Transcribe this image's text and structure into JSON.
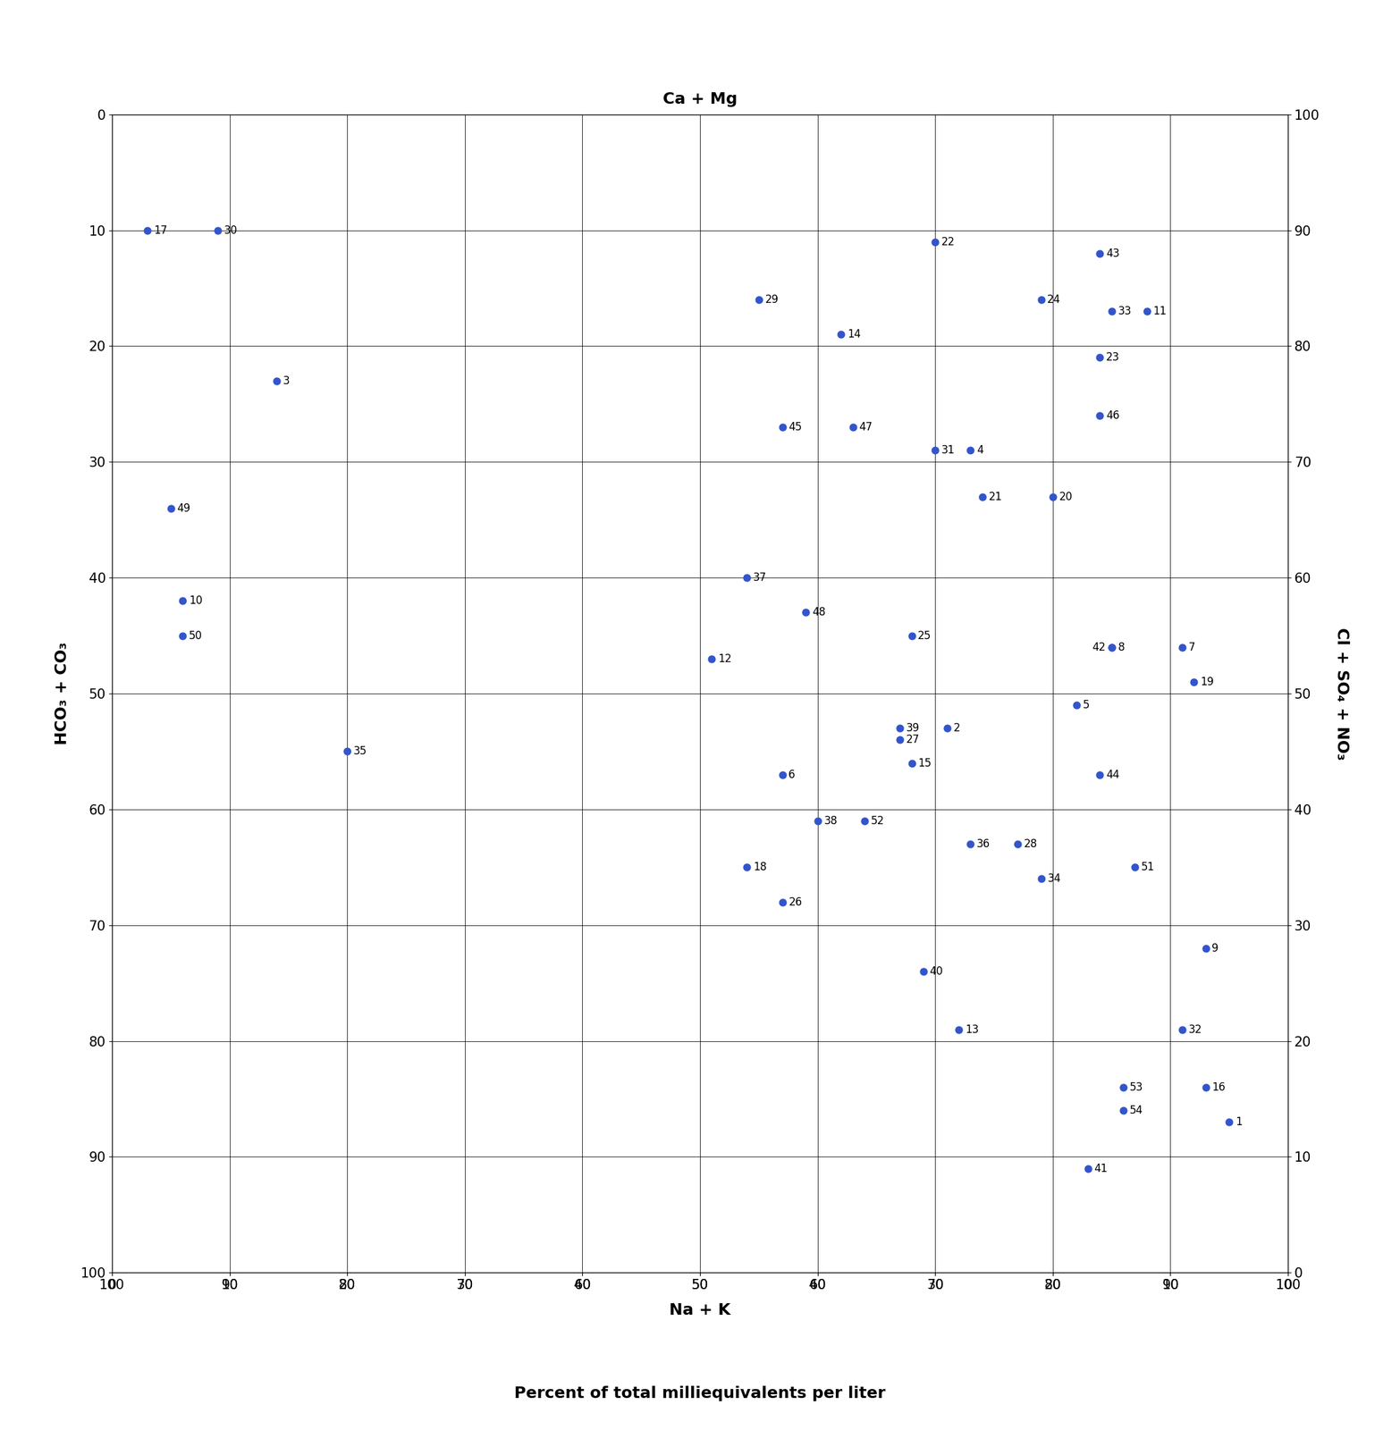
{
  "chart_data": {
    "type": "scatter",
    "x_label": "Ca + Mg",
    "x2_label": "Na + K",
    "y_label": "HCO₃ + CO₃",
    "y2_label": "Cl + SO₄ + NO₃",
    "subtitle": "Percent of total milliequivalents per liter",
    "color": "#3355cc",
    "grid": true,
    "xlim": [
      0,
      100
    ],
    "xticks": [
      0,
      10,
      20,
      30,
      40,
      50,
      60,
      70,
      80,
      90,
      100
    ],
    "x2lim": [
      100,
      0
    ],
    "x2ticks": [
      0,
      10,
      20,
      30,
      40,
      50,
      60,
      70,
      80,
      90,
      100
    ],
    "ylim": [
      100,
      0
    ],
    "yticks": [
      0,
      10,
      20,
      30,
      40,
      50,
      60,
      70,
      80,
      90,
      100
    ],
    "y2lim": [
      0,
      100
    ],
    "y2ticks": [
      0,
      10,
      20,
      30,
      40,
      50,
      60,
      70,
      80,
      90,
      100
    ],
    "labels": [
      "1",
      "2",
      "3",
      "4",
      "5",
      "6",
      "7",
      "8",
      "9",
      "10",
      "11",
      "12",
      "13",
      "14",
      "15",
      "16",
      "17",
      "18",
      "19",
      "20",
      "21",
      "22",
      "23",
      "24",
      "25",
      "26",
      "27",
      "28",
      "29",
      "30",
      "31",
      "32",
      "33",
      "34",
      "35",
      "36",
      "37",
      "38",
      "39",
      "40",
      "41",
      "42",
      "43",
      "44",
      "45",
      "46",
      "47",
      "48",
      "49",
      "50",
      "51",
      "52",
      "53",
      "54"
    ],
    "x": [
      95,
      71,
      14,
      73,
      82,
      57,
      91,
      85,
      93,
      6,
      88,
      51,
      72,
      62,
      68,
      93,
      3,
      54,
      92,
      80,
      74,
      70,
      84,
      79,
      68,
      57,
      67,
      77,
      55,
      9,
      70,
      91,
      85,
      79,
      20,
      73,
      54,
      60,
      67,
      69,
      83,
      85,
      84,
      84,
      57,
      84,
      63,
      59,
      5,
      6,
      87,
      64,
      86,
      86
    ],
    "y": [
      87,
      53,
      23,
      29,
      51,
      57,
      46,
      46,
      72,
      42,
      17,
      47,
      79,
      19,
      56,
      84,
      10,
      65,
      49,
      33,
      33,
      11,
      21,
      16,
      45,
      68,
      54,
      63,
      16,
      10,
      29,
      79,
      17,
      66,
      55,
      63,
      40,
      61,
      53,
      74,
      91,
      46,
      12,
      57,
      27,
      26,
      27,
      43,
      34,
      45,
      65,
      61,
      84,
      86
    ]
  }
}
